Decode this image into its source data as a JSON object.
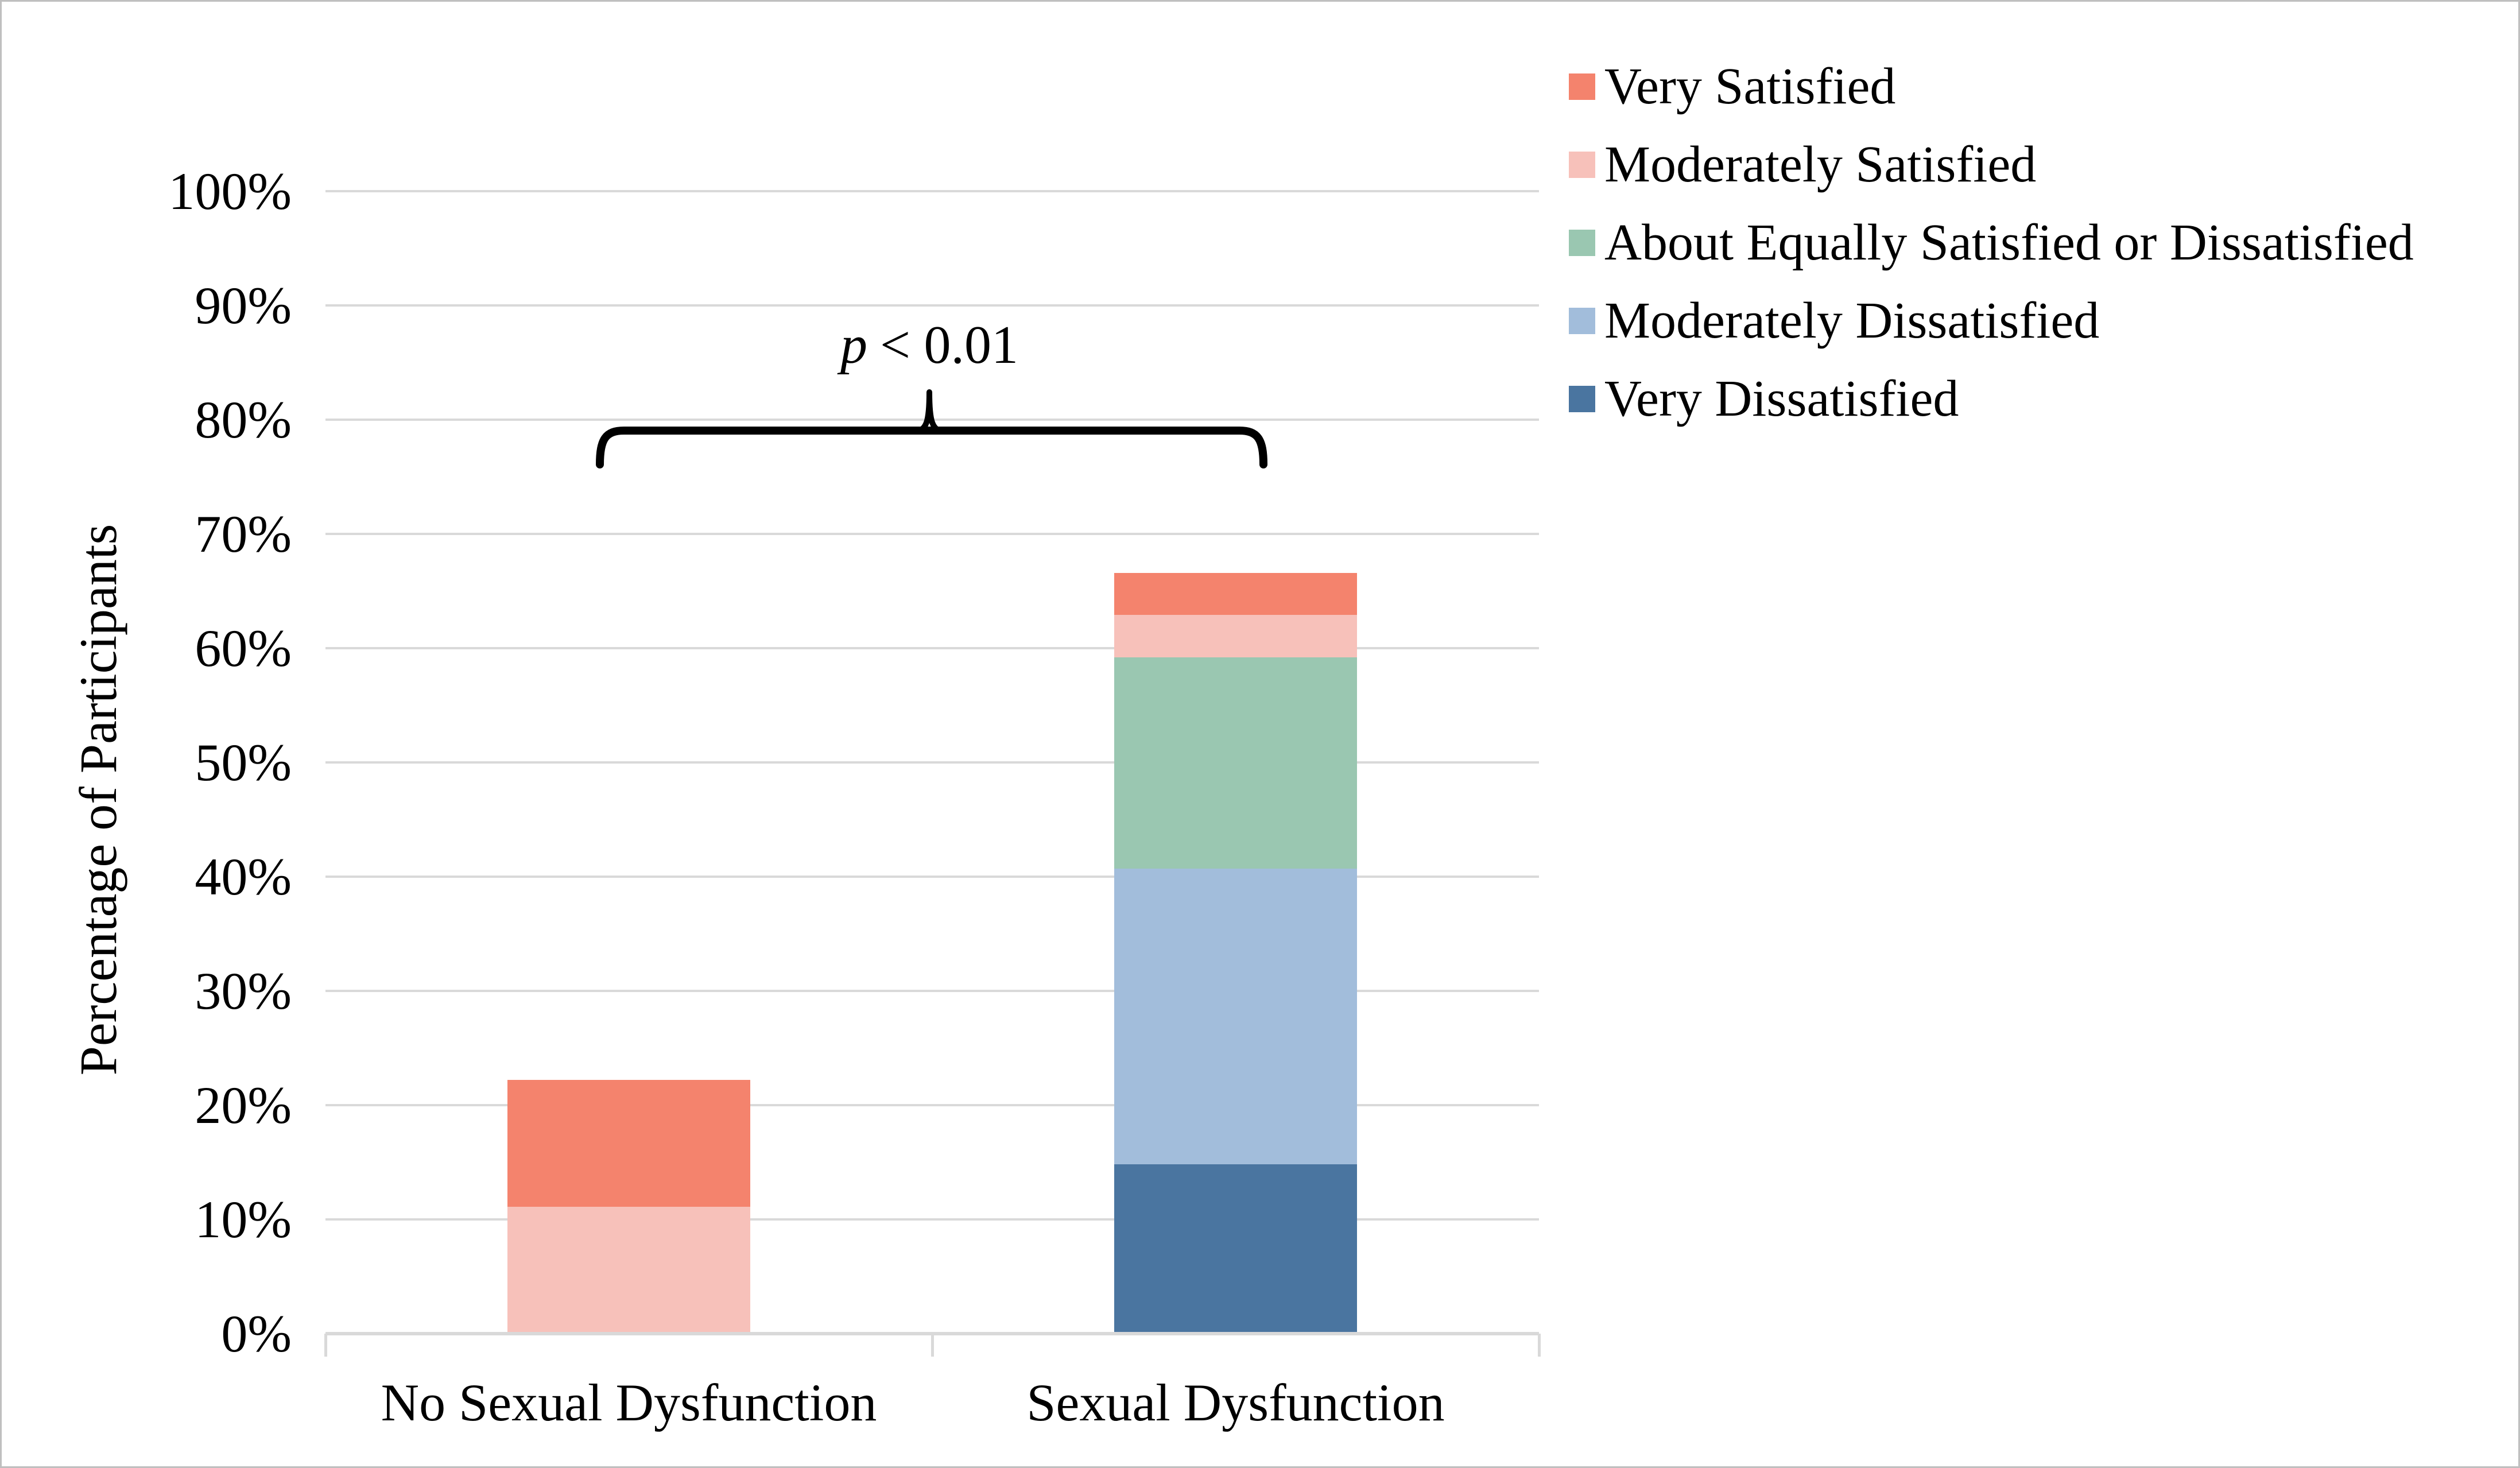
{
  "figure": {
    "background": "#FFFFFF",
    "border_color": "#BFBFBF"
  },
  "chart_data": {
    "type": "bar",
    "stacked": true,
    "categories": [
      "No Sexual Dysfunction",
      "Sexual Dysfunction"
    ],
    "series": [
      {
        "name": "Very Satisfied",
        "color": "#F4836D",
        "values": [
          11.1,
          3.7
        ]
      },
      {
        "name": "Moderately Satisfied",
        "color": "#F7C1BA",
        "values": [
          11.1,
          3.7
        ]
      },
      {
        "name": "About Equally Satisfied or Dissatisfied",
        "color": "#9AC7B1",
        "values": [
          0,
          18.5
        ]
      },
      {
        "name": "Moderately Dissatisfied",
        "color": "#A2BDDB",
        "values": [
          0,
          25.9
        ]
      },
      {
        "name": "Very Dissatisfied",
        "color": "#4A75A0",
        "values": [
          0,
          14.8
        ]
      }
    ],
    "stack_order_bottom_to_top": [
      "Very Dissatisfied",
      "Moderately Dissatisfied",
      "About Equally Satisfied or Dissatisfied",
      "Moderately Satisfied",
      "Very Satisfied"
    ],
    "bar_totals_percent": [
      22.2,
      66.7
    ],
    "ylabel": "Percentage of Participants",
    "xlabel": "",
    "ylim": [
      0,
      100
    ],
    "yticks": [
      "0%",
      "10%",
      "20%",
      "30%",
      "40%",
      "50%",
      "60%",
      "70%",
      "80%",
      "90%",
      "100%"
    ],
    "grid": true,
    "gridline_color": "#D9D9D9",
    "axis_line_color": "#D9D9D9",
    "legend_position": "upper right",
    "annotation": {
      "text": "p < 0.01",
      "p_symbol": "p",
      "threshold": "< 0.01"
    }
  }
}
